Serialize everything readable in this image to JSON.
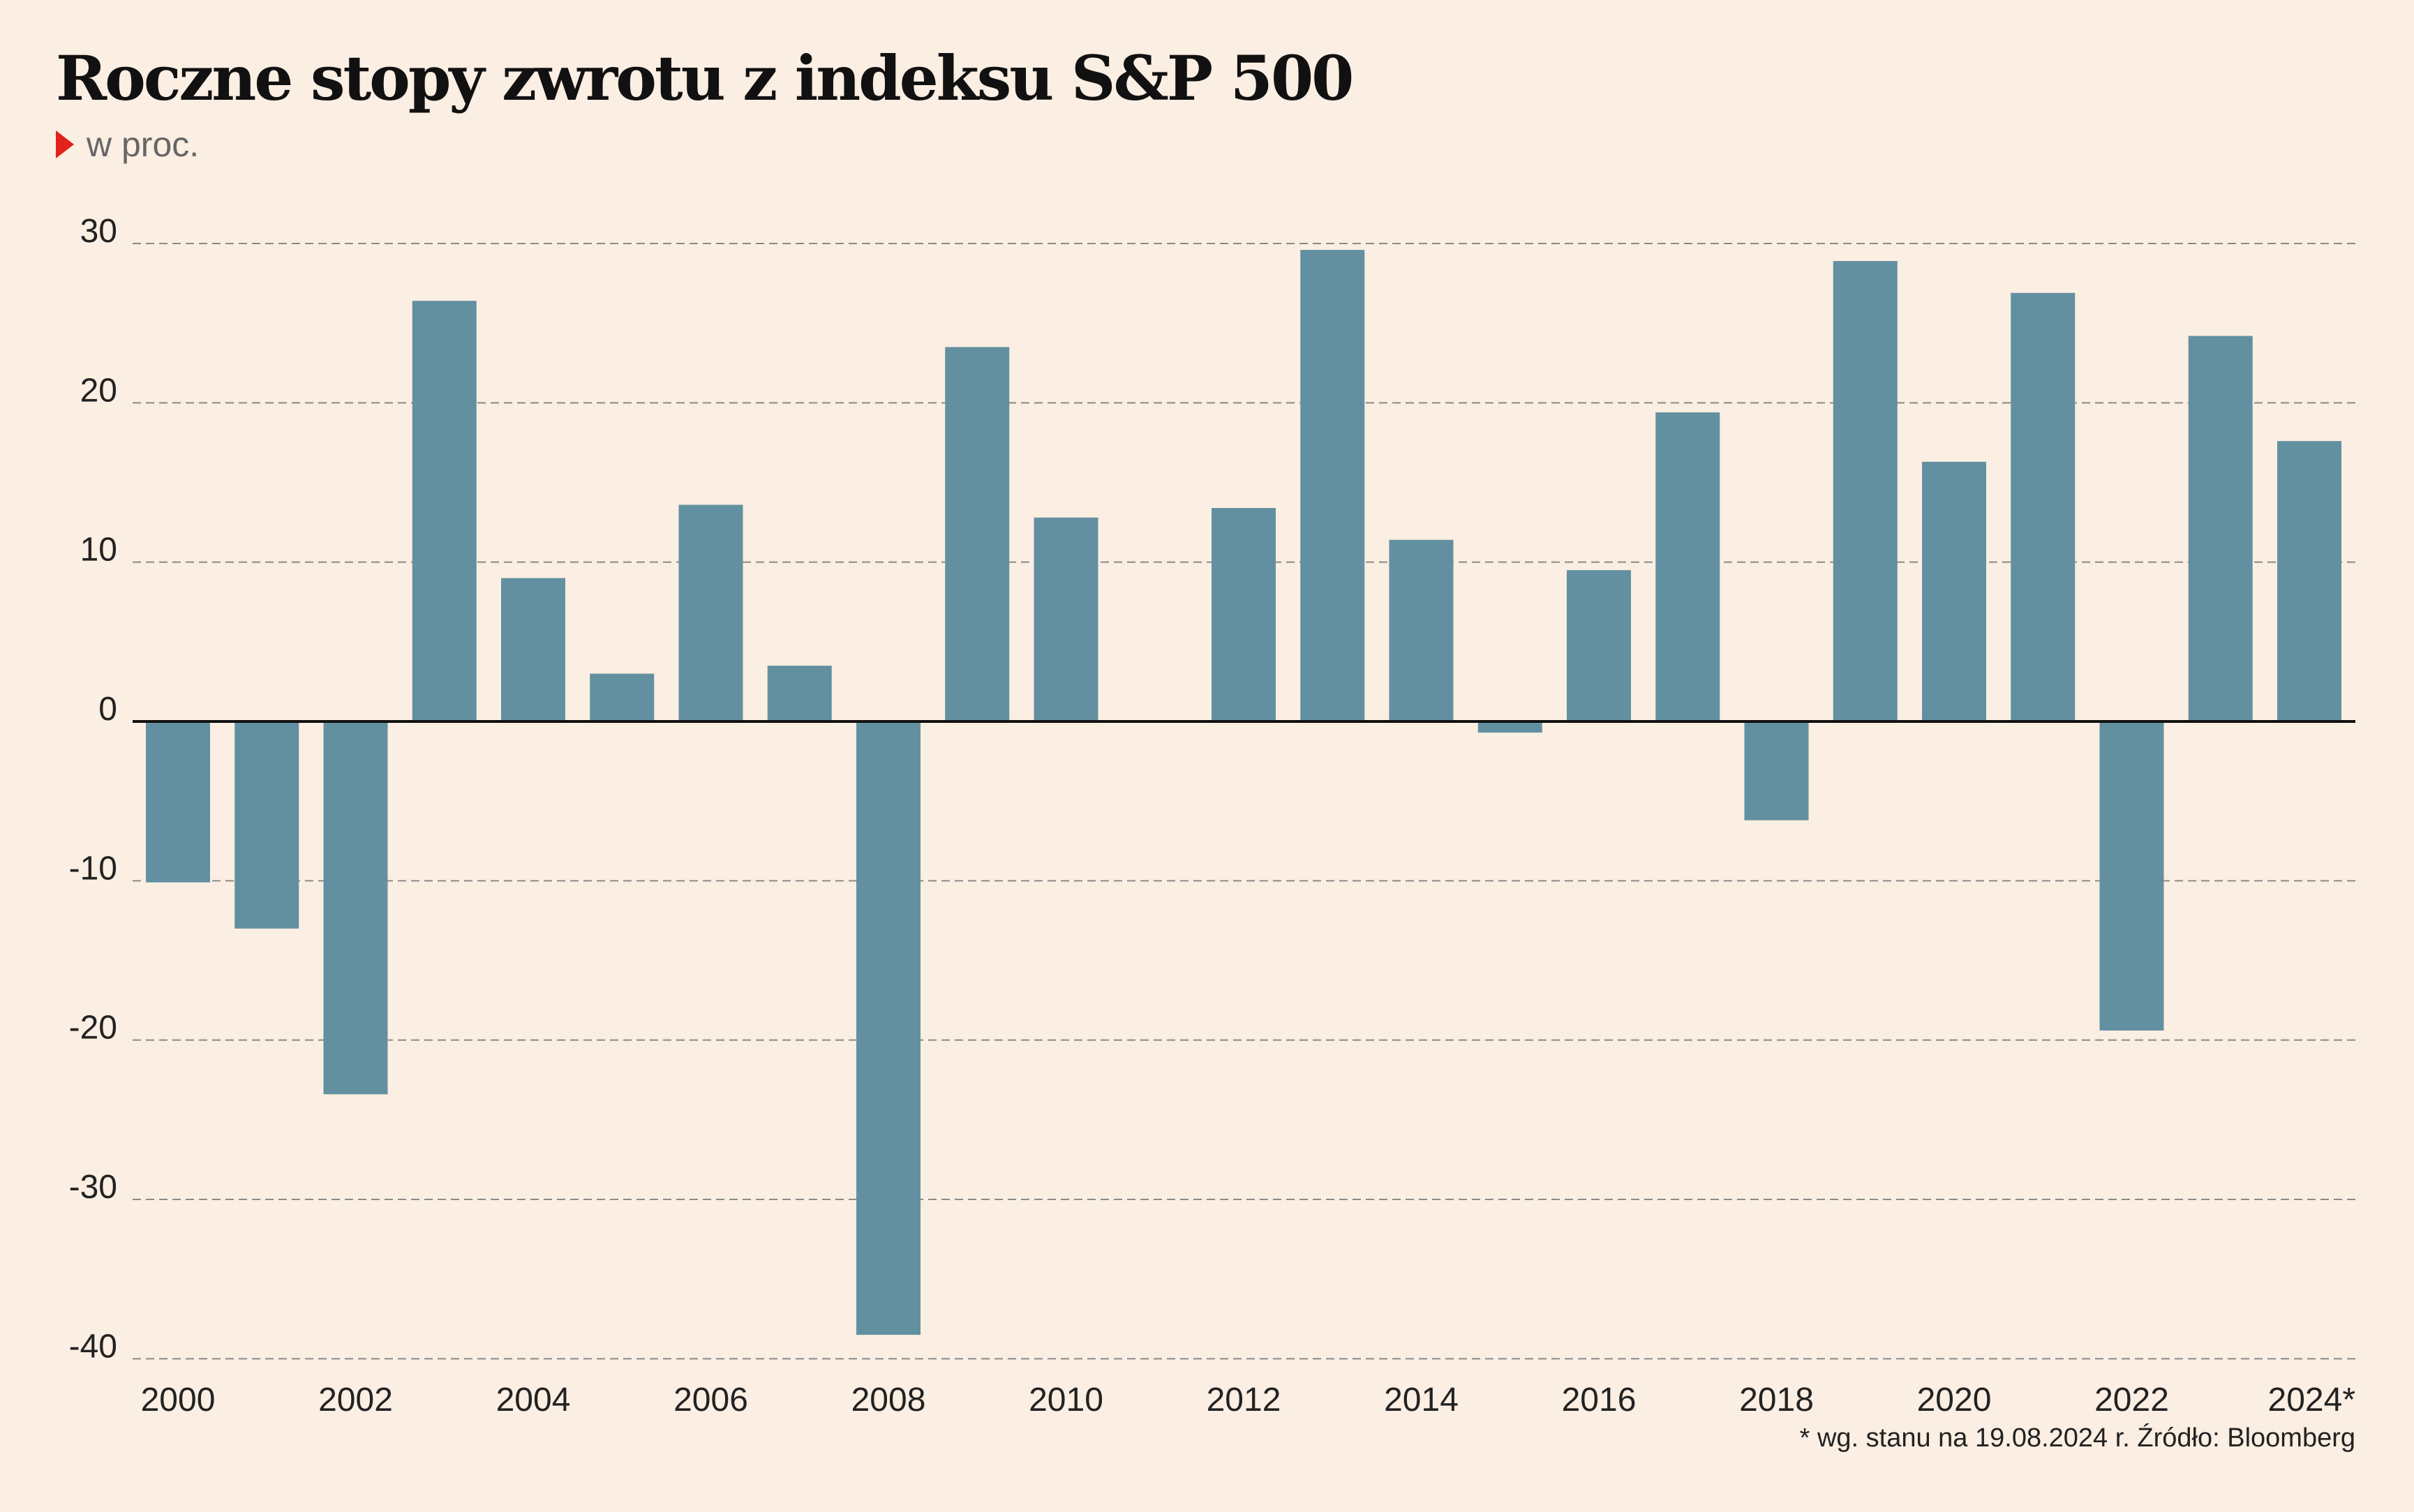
{
  "title": "Roczne stopy zwrotu z indeksu S&P 500",
  "subtitle": "w proc.",
  "footnote": "* wg. stanu na 19.08.2024 r. Źródło: Bloomberg",
  "colors": {
    "background": "#fbeee2",
    "bar": "#6390a0",
    "accent": "#e2231a",
    "grid": "#8a8a8a",
    "text": "#111111"
  },
  "chart_data": {
    "type": "bar",
    "categories": [
      "2000",
      "2001",
      "2002",
      "2003",
      "2004",
      "2005",
      "2006",
      "2007",
      "2008",
      "2009",
      "2010",
      "2011",
      "2012",
      "2013",
      "2014",
      "2015",
      "2016",
      "2017",
      "2018",
      "2019",
      "2020",
      "2021",
      "2022",
      "2023",
      "2024"
    ],
    "values": [
      -10.1,
      -13.0,
      -23.4,
      26.4,
      9.0,
      3.0,
      13.6,
      3.5,
      -38.5,
      23.5,
      12.8,
      0.0,
      13.4,
      29.6,
      11.4,
      -0.7,
      9.5,
      19.4,
      -6.2,
      28.9,
      16.3,
      26.9,
      -19.4,
      24.2,
      17.6
    ],
    "x_tick_labels": [
      "2000",
      "2002",
      "2004",
      "2006",
      "2008",
      "2010",
      "2012",
      "2014",
      "2016",
      "2018",
      "2020",
      "2022",
      "2024*"
    ],
    "y_ticks": [
      30,
      20,
      10,
      0,
      -10,
      -20,
      -30,
      -40
    ],
    "ylim": [
      -40,
      30
    ],
    "xlabel": "",
    "ylabel": "",
    "grid": "horizontal dashed",
    "legend": "none"
  }
}
